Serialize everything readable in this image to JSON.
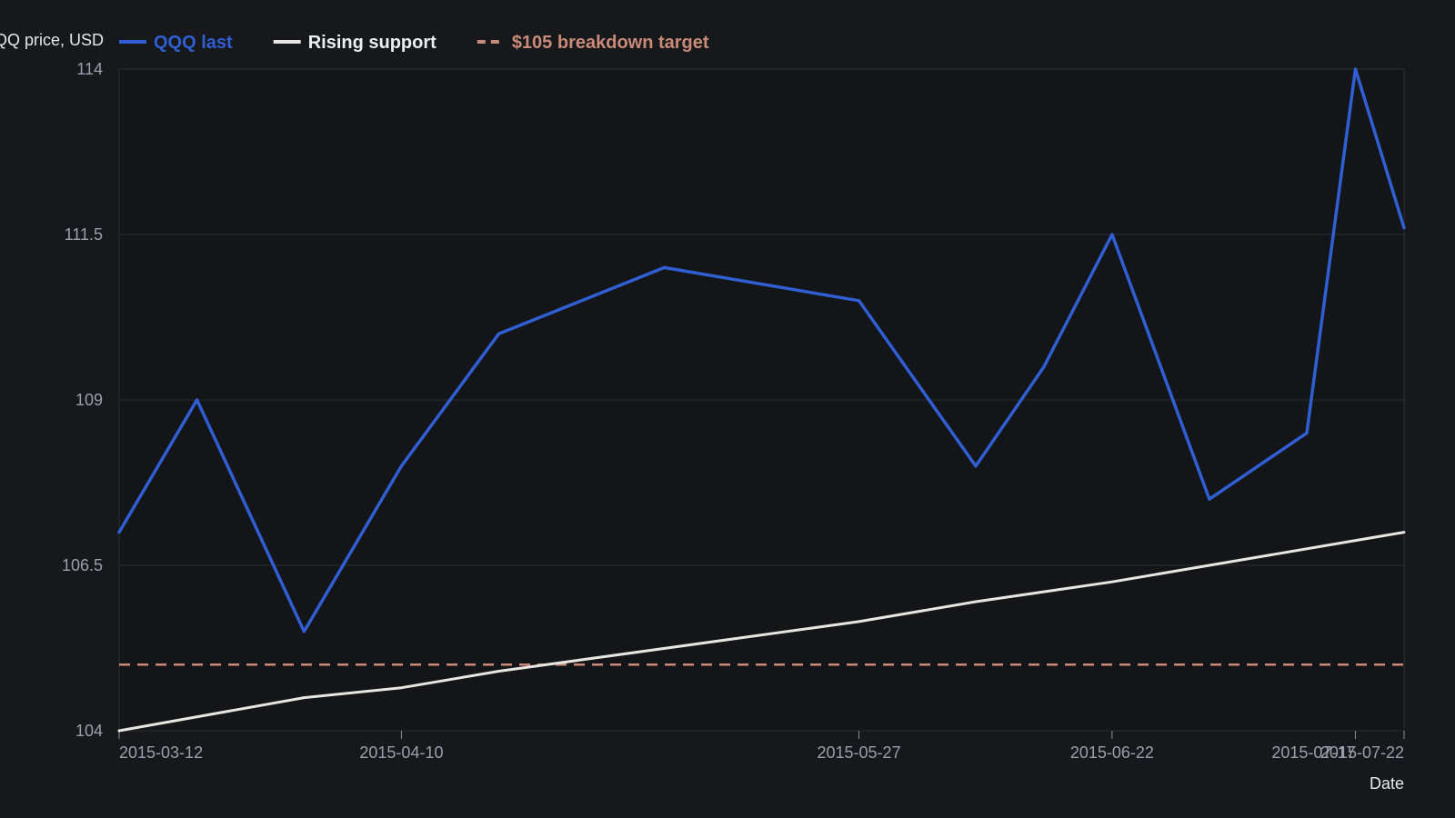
{
  "chart_data": {
    "type": "line",
    "ylabel": "QQQ price, USD",
    "xlabel": "Date",
    "ylim": [
      104,
      114
    ],
    "yticks": [
      "104",
      "106.5",
      "109",
      "111.5",
      "114"
    ],
    "xlim": [
      "2015-03-12",
      "2015-07-22"
    ],
    "xticks": [
      "2015-03-12",
      "2015-04-10",
      "2015-05-27",
      "2015-06-22",
      "2015-07-17",
      "2015-07-22"
    ],
    "grid": true,
    "legend_placement": "top-left",
    "series": [
      {
        "name": "QQQ last",
        "color": "#2f5fd3",
        "style": "solid",
        "x": [
          "2015-03-12",
          "2015-03-20",
          "2015-03-31",
          "2015-04-10",
          "2015-04-20",
          "2015-05-07",
          "2015-05-27",
          "2015-06-08",
          "2015-06-15",
          "2015-06-22",
          "2015-07-02",
          "2015-07-12",
          "2015-07-17",
          "2015-07-22"
        ],
        "values": [
          107.0,
          109.0,
          105.5,
          108.0,
          110.0,
          111.0,
          110.5,
          108.0,
          109.5,
          111.5,
          107.5,
          108.5,
          114.0,
          111.6
        ]
      },
      {
        "name": "Rising support",
        "color": "#e8e6e1",
        "style": "solid",
        "x": [
          "2015-03-12",
          "2015-03-31",
          "2015-04-10",
          "2015-04-20",
          "2015-05-27",
          "2015-06-08",
          "2015-06-22",
          "2015-07-02",
          "2015-07-22"
        ],
        "values": [
          104.0,
          104.5,
          104.65,
          104.9,
          105.65,
          105.95,
          106.25,
          106.5,
          107.0
        ]
      },
      {
        "name": "$105 breakdown target",
        "color": "#c98b78",
        "style": "dashed",
        "x": [
          "2015-03-12",
          "2015-07-22"
        ],
        "values": [
          105.0,
          105.0
        ]
      }
    ]
  }
}
